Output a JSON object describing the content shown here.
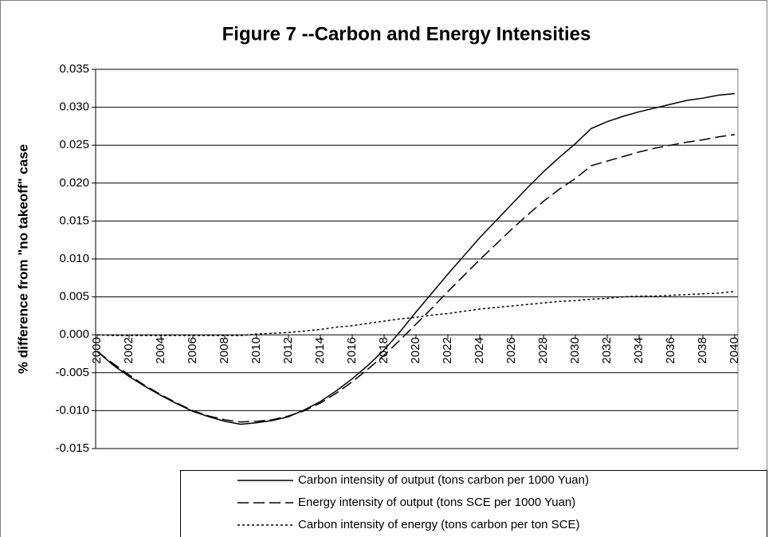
{
  "chart_data": {
    "type": "line",
    "title": "Figure 7 --Carbon and Energy Intensities",
    "y_label": "% difference from \"no takeoff\" case",
    "x": [
      2000,
      2001,
      2002,
      2003,
      2004,
      2005,
      2006,
      2007,
      2008,
      2009,
      2010,
      2011,
      2012,
      2013,
      2014,
      2015,
      2016,
      2017,
      2018,
      2019,
      2020,
      2021,
      2022,
      2023,
      2024,
      2025,
      2026,
      2027,
      2028,
      2029,
      2030,
      2031,
      2032,
      2033,
      2034,
      2035,
      2036,
      2037,
      2038,
      2039,
      2040
    ],
    "xlim": [
      2000,
      2040
    ],
    "xticks": [
      2000,
      2002,
      2004,
      2006,
      2008,
      2010,
      2012,
      2014,
      2016,
      2018,
      2020,
      2022,
      2024,
      2026,
      2028,
      2030,
      2032,
      2034,
      2036,
      2038,
      2040
    ],
    "ylim": [
      -0.015,
      0.035
    ],
    "yticks": [
      -0.015,
      {
        "value": -0.01,
        "label": "-0.010"
      },
      -0.005,
      {
        "value": 0,
        "label": "0.000"
      },
      0.005,
      {
        "value": 0.01,
        "label": "0.010"
      },
      0.015,
      {
        "value": 0.02,
        "label": "0.020"
      },
      0.025,
      {
        "value": 0.03,
        "label": "0.030"
      },
      0.035
    ],
    "grid": true,
    "series": [
      {
        "name": "Carbon intensity of output (tons carbon per 1000 Yuan)",
        "color": "#000000",
        "dash": "solid",
        "values": [
          -0.0022,
          -0.004,
          -0.0055,
          -0.0068,
          -0.008,
          -0.0091,
          -0.0101,
          -0.0108,
          -0.0114,
          -0.0118,
          -0.0116,
          -0.0113,
          -0.0108,
          -0.0099,
          -0.0088,
          -0.0074,
          -0.0058,
          -0.004,
          -0.002,
          0.0004,
          0.003,
          0.0055,
          0.008,
          0.0104,
          0.0128,
          0.015,
          0.0172,
          0.0194,
          0.0215,
          0.0234,
          0.0252,
          0.0272,
          0.0281,
          0.0288,
          0.0294,
          0.0299,
          0.0304,
          0.0309,
          0.0312,
          0.0316,
          0.0318
        ]
      },
      {
        "name": "Energy intensity of output (tons SCE per 1000 Yuan)",
        "color": "#000000",
        "dash": "dashed",
        "values": [
          -0.0022,
          -0.0038,
          -0.0053,
          -0.0067,
          -0.0079,
          -0.009,
          -0.01,
          -0.0107,
          -0.0112,
          -0.0115,
          -0.0114,
          -0.0112,
          -0.0107,
          -0.01,
          -0.009,
          -0.0077,
          -0.0062,
          -0.0045,
          -0.0027,
          -0.0007,
          0.0014,
          0.0035,
          0.0057,
          0.0078,
          0.0099,
          0.0119,
          0.0139,
          0.0158,
          0.0176,
          0.0192,
          0.0206,
          0.0223,
          0.0229,
          0.0235,
          0.0241,
          0.0246,
          0.025,
          0.0254,
          0.0257,
          0.0261,
          0.0264
        ]
      },
      {
        "name": "Carbon intensity of energy (tons carbon per ton SCE)",
        "color": "#000000",
        "dash": "dotted",
        "values": [
          0.0,
          -0.0001,
          -0.0001,
          -0.0001,
          -0.0001,
          -0.0001,
          -0.0001,
          -0.0001,
          -0.0001,
          -0.0001,
          0.0001,
          0.0002,
          0.0003,
          0.0005,
          0.0007,
          0.001,
          0.0012,
          0.0015,
          0.0018,
          0.0021,
          0.0023,
          0.0026,
          0.0028,
          0.0031,
          0.0034,
          0.0036,
          0.0038,
          0.004,
          0.0042,
          0.0044,
          0.0045,
          0.0047,
          0.0048,
          0.005,
          0.0051,
          0.0051,
          0.0052,
          0.0053,
          0.0054,
          0.0055,
          0.0057
        ]
      }
    ]
  }
}
